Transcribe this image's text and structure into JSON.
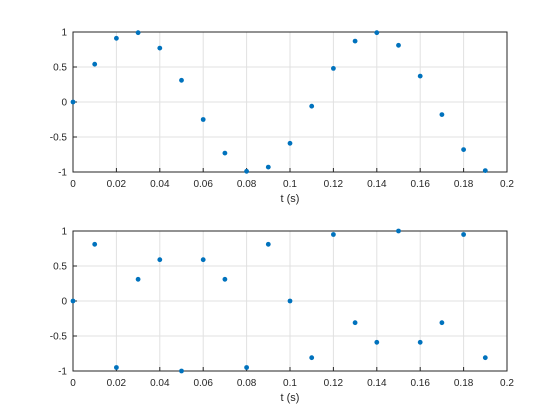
{
  "chart_data": [
    {
      "type": "scatter",
      "xlabel": "t (s)",
      "ylabel": "",
      "xlim": [
        0,
        0.2
      ],
      "ylim": [
        -1,
        1
      ],
      "x_ticks": [
        "0",
        "0.02",
        "0.04",
        "0.06",
        "0.08",
        "0.1",
        "0.12",
        "0.14",
        "0.16",
        "0.18",
        "0.2"
      ],
      "y_ticks": [
        "-1",
        "-0.5",
        "0",
        "0.5",
        "1"
      ],
      "grid": true,
      "marker_color": "#0072BD",
      "series": [
        {
          "x": [
            0,
            0.01,
            0.02,
            0.03,
            0.04,
            0.05,
            0.06,
            0.07,
            0.08,
            0.09,
            0.1,
            0.11,
            0.12,
            0.13,
            0.14,
            0.15,
            0.16,
            0.17,
            0.18,
            0.19
          ],
          "y": [
            0,
            0.54,
            0.91,
            0.99,
            0.77,
            0.31,
            -0.25,
            -0.73,
            -0.99,
            -0.93,
            -0.59,
            -0.06,
            0.48,
            0.87,
            0.99,
            0.81,
            0.37,
            -0.18,
            -0.68,
            -0.98
          ]
        }
      ]
    },
    {
      "type": "scatter",
      "xlabel": "t (s)",
      "ylabel": "",
      "xlim": [
        0,
        0.2
      ],
      "ylim": [
        -1,
        1
      ],
      "x_ticks": [
        "0",
        "0.02",
        "0.04",
        "0.06",
        "0.08",
        "0.1",
        "0.12",
        "0.14",
        "0.16",
        "0.18",
        "0.2"
      ],
      "y_ticks": [
        "-1",
        "-0.5",
        "0",
        "0.5",
        "1"
      ],
      "grid": true,
      "marker_color": "#0072BD",
      "series": [
        {
          "x": [
            0,
            0.01,
            0.02,
            0.03,
            0.04,
            0.05,
            0.06,
            0.07,
            0.08,
            0.09,
            0.1,
            0.11,
            0.12,
            0.13,
            0.14,
            0.15,
            0.16,
            0.17,
            0.18,
            0.19
          ],
          "y": [
            0,
            0.81,
            -0.95,
            0.31,
            0.59,
            -1,
            0.59,
            0.31,
            -0.95,
            0.81,
            0,
            -0.81,
            0.95,
            -0.31,
            -0.59,
            1,
            -0.59,
            -0.31,
            0.95,
            -0.81
          ]
        }
      ]
    }
  ]
}
